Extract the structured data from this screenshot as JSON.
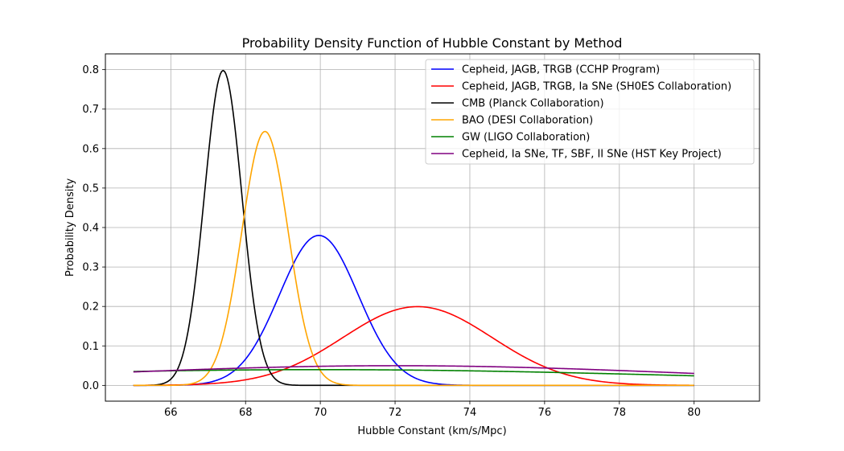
{
  "chart_data": {
    "type": "line",
    "title": "Probability Density Function of Hubble Constant by Method",
    "xlabel": "Hubble Constant (km/s/Mpc)",
    "ylabel": "Probability Density",
    "xlim": [
      64.25,
      81.75
    ],
    "ylim": [
      -0.04,
      0.84
    ],
    "xticks": [
      66,
      68,
      70,
      72,
      74,
      76,
      78,
      80
    ],
    "yticks": [
      0.0,
      0.1,
      0.2,
      0.3,
      0.4,
      0.5,
      0.6,
      0.7,
      0.8
    ],
    "xtick_labels": [
      "66",
      "68",
      "70",
      "72",
      "74",
      "76",
      "78",
      "80"
    ],
    "ytick_labels": [
      "0.0",
      "0.1",
      "0.2",
      "0.3",
      "0.4",
      "0.5",
      "0.6",
      "0.7",
      "0.8"
    ],
    "x_range": [
      65,
      80
    ],
    "grid": true,
    "legend_position": "top-right",
    "series": [
      {
        "name": "Cepheid, JAGB, TRGB (CCHP Program)",
        "color": "#0000ff",
        "distribution": "normal",
        "mean": 69.96,
        "std": 1.05
      },
      {
        "name": "Cepheid, JAGB, TRGB, Ia SNe (SH0ES Collaboration)",
        "color": "#ff0000",
        "distribution": "normal",
        "mean": 72.6,
        "std": 2.0
      },
      {
        "name": "CMB (Planck Collaboration)",
        "color": "#000000",
        "distribution": "normal",
        "mean": 67.4,
        "std": 0.5
      },
      {
        "name": "BAO (DESI Collaboration)",
        "color": "#ffa500",
        "distribution": "normal",
        "mean": 68.52,
        "std": 0.62
      },
      {
        "name": "GW (LIGO Collaboration)",
        "color": "#008000",
        "distribution": "normal",
        "mean": 70.0,
        "std": 10.0
      },
      {
        "name": "Cepheid, Ia SNe, TF, SBF, II SNe (HST Key Project)",
        "color": "#800080",
        "distribution": "normal",
        "mean": 72.0,
        "std": 8.0
      }
    ]
  }
}
